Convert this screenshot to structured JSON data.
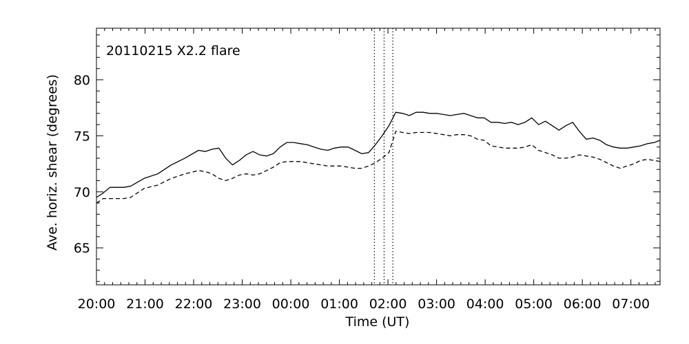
{
  "chart_data": {
    "type": "line",
    "title": "20110215 X2.2 flare",
    "xlabel": "Time (UT)",
    "ylabel": "Ave. horiz. shear (degrees)",
    "x_unit": "hours since 2011-02-14 20:00 UT",
    "xlim": [
      0,
      11.6
    ],
    "ylim": [
      61.7,
      84.6
    ],
    "x_ticks": [
      {
        "value": 0,
        "label": "20:00"
      },
      {
        "value": 1,
        "label": "21:00"
      },
      {
        "value": 2,
        "label": "22:00"
      },
      {
        "value": 3,
        "label": "23:00"
      },
      {
        "value": 4,
        "label": "00:00"
      },
      {
        "value": 5,
        "label": "01:00"
      },
      {
        "value": 6,
        "label": "02:00"
      },
      {
        "value": 7,
        "label": "03:00"
      },
      {
        "value": 8,
        "label": "04:00"
      },
      {
        "value": 9,
        "label": "05:00"
      },
      {
        "value": 10,
        "label": "06:00"
      },
      {
        "value": 11,
        "label": "07:00"
      }
    ],
    "y_ticks": [
      {
        "value": 65,
        "label": "65"
      },
      {
        "value": 70,
        "label": "70"
      },
      {
        "value": 75,
        "label": "75"
      },
      {
        "value": 80,
        "label": "80"
      }
    ],
    "vertical_markers": [
      {
        "x": 5.72,
        "style": "dotted"
      },
      {
        "x": 5.92,
        "style": "dotted"
      },
      {
        "x": 6.1,
        "style": "dotted"
      }
    ],
    "series": [
      {
        "style": "solid",
        "color": "#000000",
        "x": [
          0,
          0.14,
          0.28,
          0.42,
          0.56,
          0.7,
          0.98,
          1.26,
          1.54,
          1.82,
          2.1,
          2.24,
          2.38,
          2.52,
          2.66,
          2.8,
          2.94,
          3.08,
          3.22,
          3.36,
          3.5,
          3.64,
          3.78,
          3.92,
          4.06,
          4.2,
          4.34,
          4.48,
          4.62,
          4.76,
          4.9,
          5.04,
          5.18,
          5.32,
          5.46,
          5.6,
          5.74,
          5.88,
          6.02,
          6.16,
          6.3,
          6.44,
          6.58,
          6.72,
          6.86,
          7.0,
          7.14,
          7.28,
          7.42,
          7.56,
          7.7,
          7.84,
          7.98,
          8.12,
          8.26,
          8.4,
          8.54,
          8.68,
          8.82,
          8.96,
          9.1,
          9.24,
          9.38,
          9.52,
          9.66,
          9.8,
          9.94,
          10.08,
          10.22,
          10.36,
          10.5,
          10.64,
          10.78,
          10.92,
          11.06,
          11.2,
          11.34,
          11.48,
          11.6
        ],
        "y": [
          69.5,
          69.9,
          70.4,
          70.4,
          70.4,
          70.5,
          71.2,
          71.6,
          72.4,
          73.0,
          73.7,
          73.6,
          73.8,
          73.9,
          73.0,
          72.4,
          72.8,
          73.3,
          73.6,
          73.3,
          73.2,
          73.4,
          74.0,
          74.4,
          74.4,
          74.3,
          74.2,
          74.0,
          73.8,
          73.7,
          73.9,
          74.0,
          74.0,
          73.7,
          73.4,
          73.5,
          74.2,
          75.0,
          75.9,
          77.1,
          77.0,
          76.8,
          77.1,
          77.1,
          77.0,
          77.0,
          76.9,
          76.8,
          76.9,
          77.0,
          76.8,
          76.6,
          76.6,
          76.2,
          76.2,
          76.1,
          76.2,
          76.0,
          76.2,
          76.6,
          76.0,
          76.3,
          75.9,
          75.5,
          75.9,
          76.2,
          75.4,
          74.7,
          74.8,
          74.6,
          74.2,
          74.0,
          73.9,
          73.9,
          74.0,
          74.1,
          74.3,
          74.4,
          74.6
        ]
      },
      {
        "style": "dashed",
        "color": "#000000",
        "x": [
          0,
          0.14,
          0.28,
          0.42,
          0.56,
          0.7,
          0.98,
          1.26,
          1.54,
          1.82,
          2.1,
          2.24,
          2.38,
          2.52,
          2.66,
          2.8,
          2.94,
          3.08,
          3.22,
          3.36,
          3.5,
          3.64,
          3.78,
          3.92,
          4.06,
          4.2,
          4.34,
          4.48,
          4.62,
          4.76,
          4.9,
          5.04,
          5.18,
          5.32,
          5.46,
          5.6,
          5.74,
          5.88,
          6.02,
          6.16,
          6.3,
          6.44,
          6.58,
          6.72,
          6.86,
          7.0,
          7.14,
          7.28,
          7.42,
          7.56,
          7.7,
          7.84,
          7.98,
          8.12,
          8.26,
          8.4,
          8.54,
          8.68,
          8.82,
          8.96,
          9.1,
          9.24,
          9.38,
          9.52,
          9.66,
          9.8,
          9.94,
          10.08,
          10.22,
          10.36,
          10.5,
          10.64,
          10.78,
          10.92,
          11.06,
          11.2,
          11.34,
          11.48,
          11.6
        ],
        "y": [
          69.0,
          69.4,
          69.4,
          69.4,
          69.4,
          69.5,
          70.3,
          70.6,
          71.2,
          71.6,
          71.9,
          71.8,
          71.6,
          71.2,
          71.0,
          71.2,
          71.5,
          71.6,
          71.5,
          71.6,
          71.9,
          72.2,
          72.6,
          72.7,
          72.7,
          72.7,
          72.6,
          72.5,
          72.4,
          72.3,
          72.3,
          72.3,
          72.2,
          72.1,
          72.1,
          72.3,
          72.6,
          73.0,
          73.5,
          75.4,
          75.3,
          75.2,
          75.3,
          75.3,
          75.3,
          75.2,
          75.1,
          75.0,
          75.1,
          75.1,
          75.0,
          74.7,
          74.6,
          74.1,
          74.0,
          73.9,
          73.9,
          73.9,
          74.0,
          74.2,
          73.7,
          73.5,
          73.3,
          73.0,
          73.0,
          73.1,
          73.3,
          73.2,
          73.1,
          72.9,
          72.6,
          72.3,
          72.1,
          72.3,
          72.5,
          72.8,
          72.9,
          72.8,
          72.7
        ]
      }
    ]
  }
}
